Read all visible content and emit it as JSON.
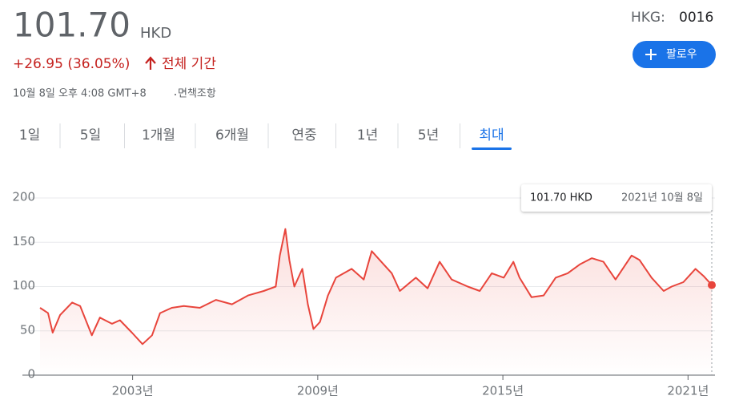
{
  "header": {
    "price": "101.70",
    "currency": "HKD",
    "change": "+26.95 (36.05%)",
    "period": "전체 기간",
    "timestamp": "10월 8일 오후 4:08 GMT+8",
    "disclaimer": "면책조항",
    "exchange": "HKG:",
    "ticker": "0016",
    "follow": "팔로우"
  },
  "tabs": {
    "labels": [
      "1일",
      "5일",
      "1개월",
      "6개월",
      "연중",
      "1년",
      "5년",
      "최대"
    ],
    "selected": 7
  },
  "chart_data": {
    "type": "line",
    "color": "#e8453c",
    "grid": true,
    "x": [
      2000.0,
      2000.26,
      2000.41,
      2000.65,
      2001.04,
      2001.3,
      2001.68,
      2001.94,
      2002.33,
      2002.59,
      2002.98,
      2003.32,
      2003.63,
      2003.89,
      2004.27,
      2004.66,
      2005.18,
      2005.7,
      2006.22,
      2006.74,
      2007.25,
      2007.64,
      2007.77,
      2007.95,
      2008.08,
      2008.24,
      2008.5,
      2008.68,
      2008.86,
      2009.07,
      2009.33,
      2009.59,
      2010.1,
      2010.49,
      2010.75,
      2011.01,
      2011.4,
      2011.66,
      2012.18,
      2012.56,
      2012.95,
      2013.34,
      2013.86,
      2014.25,
      2014.64,
      2015.03,
      2015.34,
      2015.54,
      2015.93,
      2016.32,
      2016.71,
      2017.1,
      2017.49,
      2017.88,
      2018.26,
      2018.65,
      2019.17,
      2019.43,
      2019.82,
      2020.21,
      2020.47,
      2020.85,
      2021.24,
      2021.5,
      2021.77
    ],
    "series": [
      {
        "values": [
          76,
          70,
          48,
          68,
          82,
          78,
          45,
          65,
          58,
          62,
          48,
          35,
          45,
          70,
          76,
          78,
          76,
          85,
          80,
          90,
          95,
          100,
          135,
          165,
          130,
          100,
          120,
          80,
          52,
          60,
          90,
          110,
          120,
          108,
          140,
          130,
          115,
          95,
          110,
          98,
          128,
          108,
          100,
          95,
          115,
          110,
          128,
          110,
          88,
          90,
          110,
          115,
          125,
          132,
          128,
          108,
          135,
          130,
          110,
          95,
          100,
          105,
          120,
          112,
          101.7
        ]
      }
    ],
    "xlim": [
      2000.0,
      2021.77
    ],
    "ylim": [
      0,
      200
    ],
    "yticks": [
      0,
      50,
      100,
      150,
      200
    ],
    "xticks": [
      {
        "value": 2003,
        "label": "2003년"
      },
      {
        "value": 2009,
        "label": "2009년"
      },
      {
        "value": 2015,
        "label": "2015년"
      },
      {
        "value": 2021,
        "label": "2021년"
      }
    ],
    "tooltip": {
      "value": "101.70 HKD",
      "date": "2021년 10월 8일"
    }
  }
}
